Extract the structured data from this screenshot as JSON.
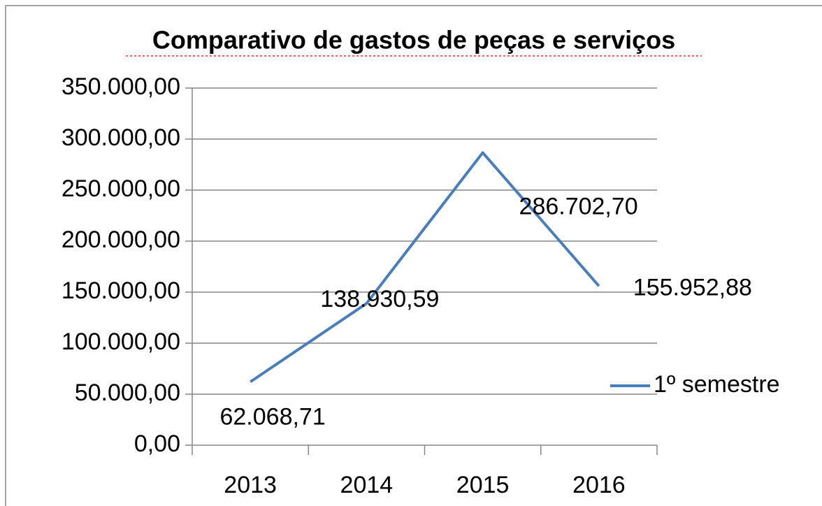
{
  "chart_data": {
    "type": "line",
    "title": "Comparativo de gastos de peças e serviços",
    "categories": [
      "2013",
      "2014",
      "2015",
      "2016"
    ],
    "series": [
      {
        "name": "1º semestre",
        "color": "#4a7ebb",
        "values": [
          62068.71,
          138930.59,
          286702.7,
          155952.88
        ],
        "value_labels": [
          "62.068,71",
          "138.930,59",
          "286.702,70",
          "155.952,88"
        ]
      }
    ],
    "ylim": [
      0,
      350000
    ],
    "yticks": [
      {
        "value": 0,
        "label": "0,00"
      },
      {
        "value": 50000,
        "label": "50.000,00"
      },
      {
        "value": 100000,
        "label": "100.000,00"
      },
      {
        "value": 150000,
        "label": "150.000,00"
      },
      {
        "value": 200000,
        "label": "200.000,00"
      },
      {
        "value": 250000,
        "label": "250.000,00"
      },
      {
        "value": 300000,
        "label": "300.000,00"
      },
      {
        "value": 350000,
        "label": "350.000,00"
      }
    ],
    "grid": true,
    "legend": "right"
  }
}
